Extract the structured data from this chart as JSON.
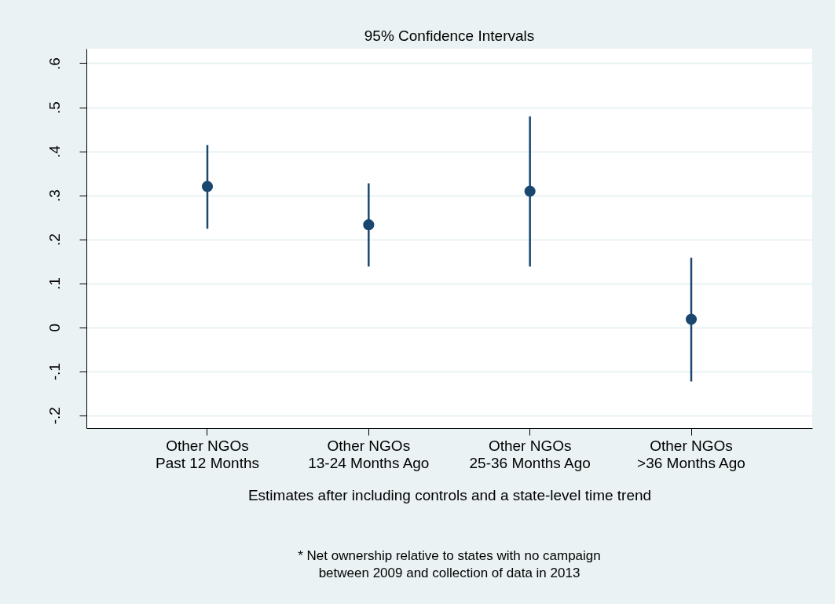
{
  "chart_data": {
    "type": "scatter",
    "title": "95% Confidence Intervals",
    "xlabel": "Estimates after including controls and a state-level time trend",
    "annotations": [
      "* Net ownership relative to states with no campaign\nbetween 2009 and collection of data in 2013"
    ],
    "categories": [
      "Other NGOs\nPast 12 Months",
      "Other NGOs\n13-24 Months Ago",
      "Other NGOs\n25-36 Months Ago",
      "Other NGOs\n>36 Months Ago"
    ],
    "series": [
      {
        "color": "#1a476f",
        "values": [
          0.32,
          0.233,
          0.309,
          0.018
        ],
        "errors": [
          [
            0.224,
            0.414
          ],
          [
            0.138,
            0.327
          ],
          [
            0.138,
            0.479
          ],
          [
            -0.123,
            0.158
          ]
        ]
      }
    ],
    "ylim": [
      -0.229,
      0.633
    ],
    "yticks": [
      {
        "value": -0.2,
        "label": "-.2"
      },
      {
        "value": -0.1,
        "label": "-.1"
      },
      0,
      {
        "value": 0.1,
        "label": ".1"
      },
      {
        "value": 0.2,
        "label": ".2"
      },
      {
        "value": 0.3,
        "label": ".3"
      },
      {
        "value": 0.4,
        "label": ".4"
      },
      {
        "value": 0.5,
        "label": ".5"
      },
      {
        "value": 0.6,
        "label": ".6"
      }
    ],
    "grid": "y",
    "marker": "circle"
  }
}
